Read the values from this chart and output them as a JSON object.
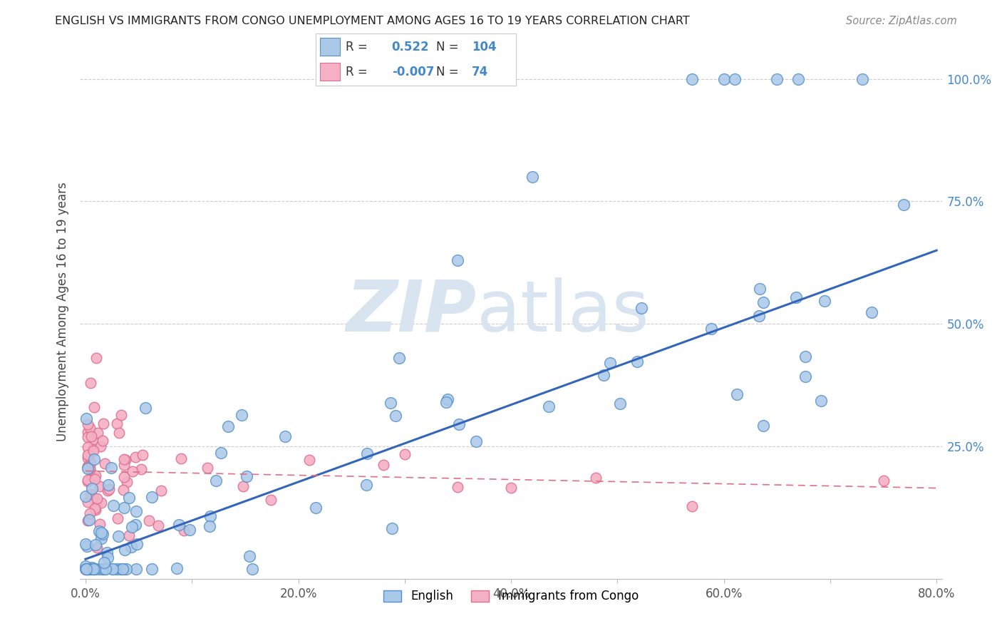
{
  "title": "ENGLISH VS IMMIGRANTS FROM CONGO UNEMPLOYMENT AMONG AGES 16 TO 19 YEARS CORRELATION CHART",
  "source": "Source: ZipAtlas.com",
  "ylabel": "Unemployment Among Ages 16 to 19 years",
  "xlim": [
    -0.005,
    0.805
  ],
  "ylim": [
    -0.02,
    1.07
  ],
  "xtick_labels": [
    "0.0%",
    "",
    "20.0%",
    "",
    "40.0%",
    "",
    "60.0%",
    "",
    "80.0%"
  ],
  "xtick_vals": [
    0.0,
    0.1,
    0.2,
    0.3,
    0.4,
    0.5,
    0.6,
    0.7,
    0.8
  ],
  "ytick_labels": [
    "25.0%",
    "50.0%",
    "75.0%",
    "100.0%"
  ],
  "ytick_vals": [
    0.25,
    0.5,
    0.75,
    1.0
  ],
  "legend_R_english": "0.522",
  "legend_N_english": "104",
  "legend_R_congo": "-0.007",
  "legend_N_congo": "74",
  "english_color": "#aac8e8",
  "congo_color": "#f4b0c4",
  "english_edge_color": "#5590cc",
  "congo_edge_color": "#e07090",
  "english_line_color": "#3366bb",
  "congo_line_color": "#dd7088",
  "background_color": "#ffffff",
  "watermark_color": "#d8e4f0",
  "english_line_x": [
    0.0,
    0.8
  ],
  "english_line_y": [
    0.02,
    0.65
  ],
  "congo_line_x": [
    0.0,
    0.8
  ],
  "congo_line_y": [
    0.2,
    0.165
  ]
}
